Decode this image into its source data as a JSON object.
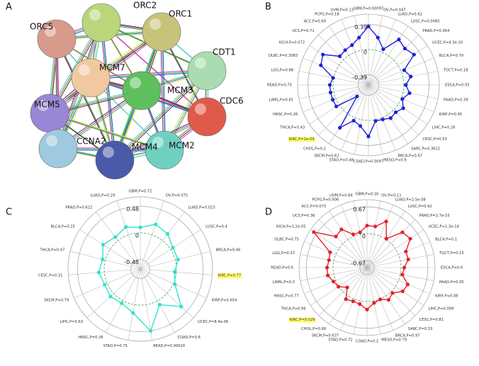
{
  "panel_labels": [
    "A",
    "B",
    "C",
    "D"
  ],
  "network": {
    "nodes": [
      "ORC2",
      "ORC1",
      "ORC5",
      "CDT1",
      "MCM7",
      "MCM3",
      "MCM5",
      "CDC6",
      "CCNA2",
      "MCM2",
      "MCM4"
    ],
    "colors": [
      "#b9d77a",
      "#c9c27a",
      "#d89a8a",
      "#a9dcb0",
      "#f0c9a0",
      "#5fbf5f",
      "#9a86d6",
      "#e05a4a",
      "#9ec9df",
      "#6fd0c0",
      "#4a5aa8"
    ]
  },
  "chart_data": [
    {
      "type": "radar",
      "color": "#1b22d8",
      "rlim": [
        -0.55,
        0.55
      ],
      "rticks": [
        -0.39,
        0,
        0.39
      ],
      "highlight_index": 20,
      "highlight_color": "#ffff66",
      "categories": [
        "GBM,P=0.00097",
        "OV,P=0.047",
        "LUAD,P=0.62",
        "LUSC,P=0.0085",
        "PRAD,P=0.064",
        "UCEC,P=4.3e-10",
        "BLCA,P=0.79",
        "TGCT,P=0.18",
        "ESCA,P=0.93",
        "PAAD,P=0.39",
        "KIRP,P=0.95",
        "LIHC,P=0.26",
        "CESC,P=0.53",
        "SARC,P=0.3621",
        "BRCA,P=0.67",
        "MESO,P=0.9",
        "COAD,P=0.0097",
        "STAD,P=0.48",
        "SKCM,P=0.62",
        "CHOL,P=0.2",
        "KIRC,P=2e-04",
        "THCA,P=0.43",
        "HNSC,P=0.26",
        "LAML,P=0.81",
        "READ,P=0.75",
        "LGG,P=0.88",
        "DLBC,P=0.3083",
        "KICH,P=0.072",
        "UCS,P=0.71",
        "ACC,P=0.69",
        "PCPG,P=0.18",
        "UVM,P=0.13"
      ],
      "values": [
        0.36,
        0.2,
        0.05,
        0.3,
        0.25,
        0.3,
        0.05,
        0.12,
        0.03,
        0.1,
        0.02,
        0.1,
        0.05,
        0.07,
        0.03,
        0.02,
        0.25,
        0.1,
        0.05,
        0.25,
        -0.3,
        0.05,
        0.05,
        0.05,
        0.05,
        0.01,
        0.25,
        0.3,
        0.08,
        0.1,
        0.12,
        0.2
      ]
    },
    {
      "type": "radar",
      "color": "#2fe3c8",
      "rlim": [
        -0.65,
        0.65
      ],
      "rticks": [
        -0.48,
        0,
        0.48
      ],
      "highlight_index": 5,
      "highlight_color": "#ffff66",
      "categories": [
        "GBM,P=0.72",
        "OV,P=0.075",
        "LUAD,P=0.023",
        "LUSC,P=0.4",
        "BRCA,P=0.46",
        "KIRC,P=0.77",
        "KIRP,P=0.654",
        "UCEC,P=8.4e-06",
        "COAD,P=0.6",
        "READ,P=0.00024",
        "STAD,P=0.75",
        "HNSC,P=0.36",
        "LIHC,P=0.63",
        "SKCM,P=0.79",
        "CESC,P=0.31",
        "THCA,P=0.47",
        "BLCA,P=0.25",
        "PRAD,P=0.622",
        "LUAD,P=0.29"
      ],
      "values": [
        0.1,
        0.2,
        0.15,
        0.05,
        0.05,
        -0.03,
        0.03,
        0.35,
        0.08,
        0.48,
        0.15,
        0.05,
        0.08,
        0.05,
        0.1,
        0.05,
        0.15,
        0.08,
        0.15
      ]
    },
    {
      "type": "radar",
      "color": "#e3202c",
      "rlim": [
        -0.85,
        0.85
      ],
      "rticks": [
        -0.67,
        0,
        0.67
      ],
      "highlight_index": 20,
      "highlight_color": "#ffff66",
      "categories": [
        "GBM,P=0.16",
        "OV,P=0.11",
        "LUAD,P=2.5e-08",
        "LUSC,P=0.92",
        "PRAD,P=2.7e-10",
        "UCEC,P=1.3e-14",
        "BLCA,P=0.1",
        "TGCT,P=0.15",
        "ESCA,P=0.6",
        "PAAD,P=0.95",
        "KIRP,P=0.08",
        "LIHC,P=0.099",
        "CESC,P=0.81",
        "SARC,P=0.33",
        "BRCA,P=0.97",
        "MESO,P=0.79",
        "COAD,P=0.1",
        "STAD,P=0.72",
        "SKCM,P=0.637",
        "CHOL,P=0.68",
        "KIRC,P=0.029",
        "THCA,P=0.99",
        "HNSC,P=0.77",
        "LAML,P=0.3",
        "READ,P=0.6",
        "LGG,P=0.23",
        "DLBC,P=0.75",
        "KICH,P=1.2e-05",
        "UCS,P=0.36",
        "ACC,P=0.073",
        "PCPG,P=0.906",
        "UVM,P=0.84"
      ],
      "values": [
        0.2,
        0.2,
        0.4,
        0.02,
        0.4,
        0.45,
        0.2,
        0.2,
        0.08,
        0.05,
        0.25,
        0.22,
        0.05,
        0.12,
        0.01,
        0.05,
        0.2,
        0.08,
        0.06,
        0.1,
        -0.15,
        0.01,
        0.06,
        0.15,
        0.15,
        0.12,
        0.15,
        0.75,
        0.25,
        0.3,
        0.05,
        0.05
      ]
    }
  ]
}
